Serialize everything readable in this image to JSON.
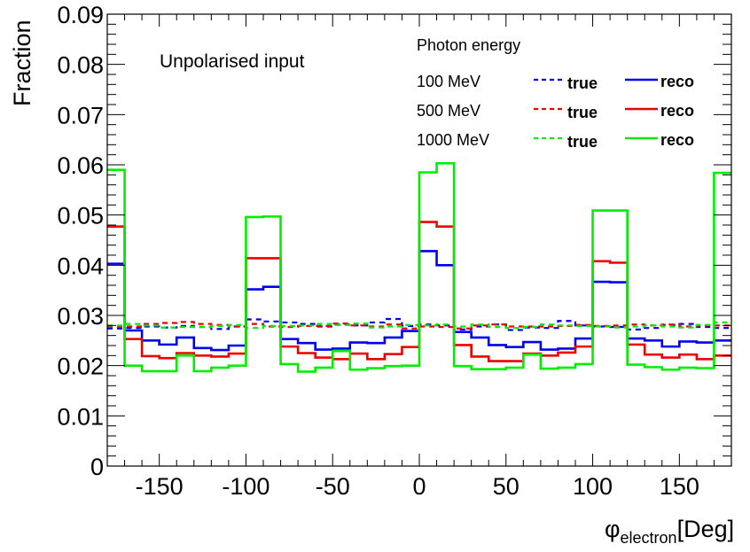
{
  "chart_data": {
    "type": "line",
    "style": "histogram",
    "title": "",
    "xlabel_main": "φ",
    "xlabel_sub": "electron",
    "xlabel_unit": "[Deg]",
    "ylabel": "Fraction",
    "xlim": [
      -180,
      180
    ],
    "ylim": [
      0,
      0.09
    ],
    "x_ticks": [
      -150,
      -100,
      -50,
      0,
      50,
      100,
      150
    ],
    "y_ticks": [
      "0",
      "0.01",
      "0.02",
      "0.03",
      "0.04",
      "0.05",
      "0.06",
      "0.07",
      "0.08",
      "0.09"
    ],
    "y_tick_values": [
      0,
      0.01,
      0.02,
      0.03,
      0.04,
      0.05,
      0.06,
      0.07,
      0.08,
      0.09
    ],
    "bin_edges": [
      -180,
      -170,
      -160,
      -150,
      -140,
      -130,
      -120,
      -110,
      -100,
      -90,
      -80,
      -70,
      -60,
      -50,
      -40,
      -30,
      -20,
      -10,
      0,
      10,
      20,
      30,
      40,
      50,
      60,
      70,
      80,
      90,
      100,
      110,
      120,
      130,
      140,
      150,
      160,
      170,
      180
    ],
    "annotation": "Unpolarised input",
    "legend_header": "Photon energy",
    "legend_placement": "top-right",
    "grid": false,
    "series": [
      {
        "name": "100 MeV true",
        "energy": "100 MeV",
        "kind": "true",
        "color": "#0000ee",
        "dash": true,
        "values": [
          0.0274,
          0.0275,
          0.0278,
          0.0276,
          0.0279,
          0.0277,
          0.0273,
          0.0278,
          0.0292,
          0.0288,
          0.0286,
          0.0283,
          0.0278,
          0.0282,
          0.028,
          0.0286,
          0.0293,
          0.0279,
          0.0282,
          0.028,
          0.0272,
          0.0278,
          0.0282,
          0.0271,
          0.0276,
          0.0275,
          0.0289,
          0.028,
          0.0278,
          0.0277,
          0.0272,
          0.0275,
          0.0281,
          0.0283,
          0.0277,
          0.0275
        ]
      },
      {
        "name": "100 MeV reco",
        "energy": "100 MeV",
        "kind": "reco",
        "color": "#0000ee",
        "dash": false,
        "values": [
          0.0403,
          0.027,
          0.025,
          0.0242,
          0.0256,
          0.0235,
          0.0231,
          0.024,
          0.0352,
          0.0357,
          0.0253,
          0.0245,
          0.0232,
          0.0234,
          0.0246,
          0.0245,
          0.0256,
          0.0269,
          0.0428,
          0.04,
          0.0267,
          0.0256,
          0.0241,
          0.0237,
          0.0247,
          0.0232,
          0.0234,
          0.0254,
          0.0367,
          0.0366,
          0.0254,
          0.025,
          0.0238,
          0.0248,
          0.0246,
          0.025
        ]
      },
      {
        "name": "500 MeV true",
        "energy": "500 MeV",
        "kind": "true",
        "color": "#ee0000",
        "dash": true,
        "values": [
          0.0278,
          0.0278,
          0.0283,
          0.0285,
          0.0287,
          0.0283,
          0.0281,
          0.0278,
          0.0283,
          0.0278,
          0.0277,
          0.0279,
          0.0279,
          0.0284,
          0.028,
          0.0278,
          0.0282,
          0.0274,
          0.0278,
          0.0277,
          0.0274,
          0.028,
          0.0282,
          0.0278,
          0.0278,
          0.0278,
          0.0279,
          0.0281,
          0.0279,
          0.028,
          0.0282,
          0.028,
          0.0282,
          0.0278,
          0.028,
          0.028
        ]
      },
      {
        "name": "500 MeV reco",
        "energy": "500 MeV",
        "kind": "reco",
        "color": "#ee0000",
        "dash": false,
        "values": [
          0.0477,
          0.0253,
          0.0219,
          0.0215,
          0.0225,
          0.022,
          0.0218,
          0.0224,
          0.0414,
          0.0414,
          0.0238,
          0.0225,
          0.0216,
          0.0213,
          0.0224,
          0.0213,
          0.0223,
          0.0237,
          0.0486,
          0.0477,
          0.0241,
          0.0218,
          0.0209,
          0.0209,
          0.0224,
          0.022,
          0.0226,
          0.0238,
          0.0408,
          0.0405,
          0.0242,
          0.0222,
          0.0216,
          0.0222,
          0.0213,
          0.022
        ]
      },
      {
        "name": "1000 MeV true",
        "energy": "1000 MeV",
        "kind": "true",
        "color": "#00ee00",
        "dash": true,
        "values": [
          0.028,
          0.0283,
          0.028,
          0.0276,
          0.0277,
          0.0277,
          0.0279,
          0.0281,
          0.0275,
          0.0279,
          0.0279,
          0.028,
          0.0283,
          0.0281,
          0.0284,
          0.0276,
          0.0278,
          0.0281,
          0.028,
          0.0282,
          0.0278,
          0.0282,
          0.0277,
          0.0275,
          0.0277,
          0.0282,
          0.028,
          0.0279,
          0.0278,
          0.0276,
          0.0278,
          0.028,
          0.0278,
          0.0276,
          0.0281,
          0.0286
        ]
      },
      {
        "name": "1000 MeV reco",
        "energy": "1000 MeV",
        "kind": "reco",
        "color": "#00ee00",
        "dash": false,
        "values": [
          0.059,
          0.02,
          0.0189,
          0.0189,
          0.022,
          0.0189,
          0.0196,
          0.02,
          0.0496,
          0.0497,
          0.0203,
          0.0188,
          0.0196,
          0.0229,
          0.0192,
          0.0195,
          0.0199,
          0.02,
          0.0585,
          0.0603,
          0.0199,
          0.0193,
          0.0193,
          0.0196,
          0.0222,
          0.0194,
          0.0196,
          0.0203,
          0.0509,
          0.0509,
          0.0202,
          0.0197,
          0.0192,
          0.0196,
          0.0195,
          0.0584
        ]
      }
    ],
    "legend_rows": [
      {
        "label": "100 MeV",
        "color": "#0000ee",
        "true_label": "true",
        "reco_label": "reco"
      },
      {
        "label": "500 MeV",
        "color": "#ee0000",
        "true_label": "true",
        "reco_label": "reco"
      },
      {
        "label": "1000 MeV",
        "color": "#00ee00",
        "true_label": "true",
        "reco_label": "reco"
      }
    ]
  }
}
